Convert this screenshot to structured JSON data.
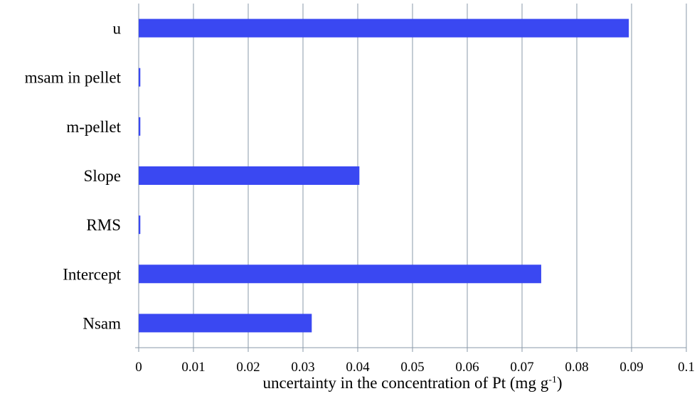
{
  "chart_data": {
    "type": "bar",
    "orientation": "horizontal",
    "categories": [
      "u",
      "msam in pellet",
      "m-pellet",
      "Slope",
      "RMS",
      "Intercept",
      "Nsam"
    ],
    "series": [
      {
        "values": [
          0.0895,
          0.0003,
          0.0003,
          0.0403,
          0.0003,
          0.0735,
          0.0316
        ]
      }
    ],
    "xlim": [
      0,
      0.1
    ],
    "xticks": [
      "0",
      "0.01",
      "0.02",
      "0.03",
      "0.04",
      "0.05",
      "0.06",
      "0.07",
      "0.08",
      "0.09",
      "0.1"
    ],
    "xlabel": {
      "text": "uncertainty in the concentration of Pt (mg g",
      "sup": "-1",
      "suffix": ")"
    },
    "ylabel": "",
    "grid": "vertical",
    "legend": "none",
    "colors": {
      "bar": "#3a48f2",
      "grid": "#8a9aa8",
      "axis": "#8a9aa8"
    }
  }
}
